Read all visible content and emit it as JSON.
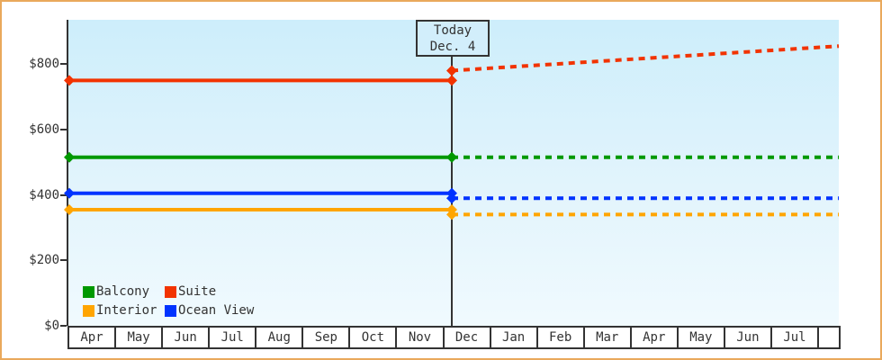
{
  "chart_data": {
    "type": "line",
    "title": "",
    "xlabel": "",
    "ylabel": "",
    "y_ticks": [
      0,
      200,
      400,
      600,
      800
    ],
    "y_tick_labels": [
      "$0",
      "$200",
      "$400",
      "$600",
      "$800"
    ],
    "ylim": [
      0,
      935
    ],
    "x_categories": [
      "Apr",
      "May",
      "Jun",
      "Jul",
      "Aug",
      "Sep",
      "Oct",
      "Nov",
      "Dec",
      "Jan",
      "Feb",
      "Mar",
      "Apr",
      "May",
      "Jun",
      "Jul"
    ],
    "grid": false,
    "legend_position": "inside-bottom-left",
    "line_style_past": "solid",
    "line_style_forecast": "dotted",
    "today_annotation": {
      "line1": "Today",
      "line2": "Dec. 4"
    },
    "series": [
      {
        "name": "Balcony",
        "color": "#009900",
        "past_price": 515,
        "forecast_start": 515,
        "forecast_end": 515
      },
      {
        "name": "Suite",
        "color": "#f23300",
        "past_price": 750,
        "forecast_start": 780,
        "forecast_end": 855
      },
      {
        "name": "Interior",
        "color": "#ffa500",
        "past_price": 355,
        "forecast_start": 340,
        "forecast_end": 340
      },
      {
        "name": "Ocean View",
        "color": "#0033ff",
        "past_price": 405,
        "forecast_start": 390,
        "forecast_end": 390
      }
    ]
  },
  "colors": {
    "frame_border": "#e9a95c",
    "axis": "#333333",
    "plot_bg_top": "#cdeefb",
    "plot_bg_bottom": "#f0fafe",
    "today_box_bg": "#d2eefb"
  }
}
